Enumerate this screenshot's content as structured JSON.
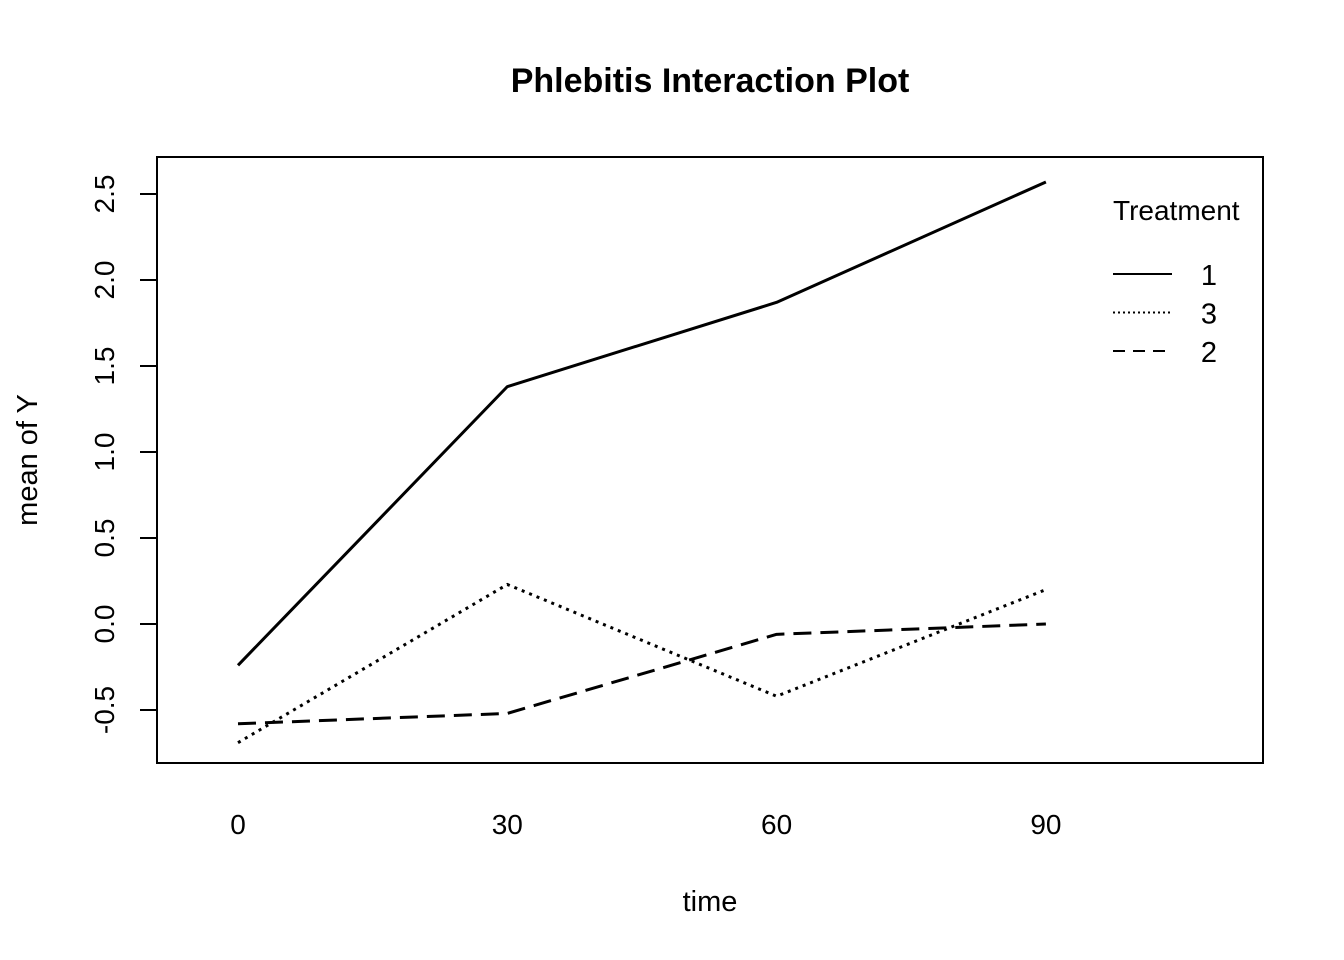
{
  "chart_data": {
    "type": "line",
    "title": "Phlebitis Interaction Plot",
    "xlabel": "time",
    "ylabel": "mean of Y",
    "categories": [
      "0",
      "30",
      "60",
      "90"
    ],
    "yticks": [
      "-0.5",
      "0.0",
      "0.5",
      "1.0",
      "1.5",
      "2.0",
      "2.5"
    ],
    "ylim": [
      -0.8,
      2.7
    ],
    "grid": false,
    "legend": {
      "title": "Treatment",
      "placement": "top-right",
      "entries": [
        {
          "label": "1",
          "linestyle": "solid"
        },
        {
          "label": "3",
          "linestyle": "dotted"
        },
        {
          "label": "2",
          "linestyle": "dashed"
        }
      ]
    },
    "series": [
      {
        "name": "1",
        "linestyle": "solid",
        "values": [
          -0.24,
          1.38,
          1.87,
          2.57
        ]
      },
      {
        "name": "3",
        "linestyle": "dotted",
        "values": [
          -0.69,
          0.23,
          -0.42,
          0.2
        ]
      },
      {
        "name": "2",
        "linestyle": "dashed",
        "values": [
          -0.58,
          -0.52,
          -0.06,
          0.0
        ]
      }
    ]
  }
}
